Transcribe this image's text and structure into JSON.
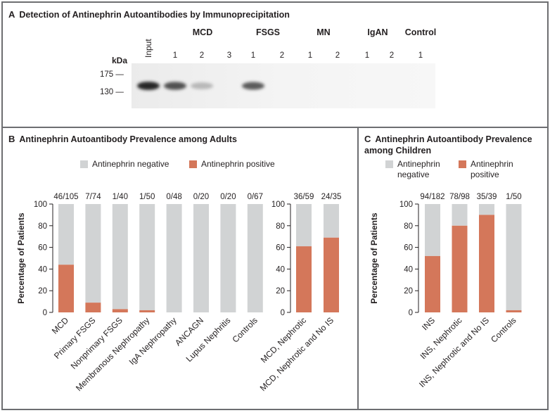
{
  "panel_a": {
    "letter": "A",
    "title": "Detection of Antinephrin Autoantibodies by Immunoprecipitation",
    "kda_label": "kDa",
    "markers": [
      "175 —",
      "130 —"
    ],
    "input_label": "Input",
    "groups": [
      {
        "name": "MCD",
        "lanes": [
          "1",
          "2",
          "3"
        ]
      },
      {
        "name": "FSGS",
        "lanes": [
          "1",
          "2"
        ]
      },
      {
        "name": "MN",
        "lanes": [
          "1",
          "2"
        ]
      },
      {
        "name": "IgAN",
        "lanes": [
          "1",
          "2"
        ]
      },
      {
        "name": "Control",
        "lanes": [
          "1"
        ]
      }
    ],
    "band_intensities": [
      0.95,
      0.75,
      0.25,
      0.0,
      0.7,
      0.0,
      0.0,
      0.0,
      0.0,
      0.0,
      0.0
    ]
  },
  "panel_b": {
    "letter": "B",
    "title": "Antinephrin Autoantibody Prevalence among Adults"
  },
  "panel_c": {
    "letter": "C",
    "title_line1": "Antinephrin Autoantibody Prevalence",
    "title_line2": "among Children"
  },
  "legend": {
    "negative": "Antinephrin negative",
    "positive": "Antinephrin positive",
    "negative_line1": "Antinephrin",
    "negative_line2": "negative",
    "positive_line1": "Antinephrin",
    "positive_line2": "positive"
  },
  "colors": {
    "positive": "#d4775a",
    "negative": "#d1d3d4",
    "border": "#6d6e71"
  },
  "chart_data": [
    {
      "type": "bar",
      "id": "adults-main",
      "ylabel": "Percentage of Patients",
      "ylim": [
        0,
        100
      ],
      "yticks": [
        0,
        20,
        40,
        60,
        80,
        100
      ],
      "categories": [
        "MCD",
        "Primary FSGS",
        "Nonprimary FSGS",
        "Membranous Nephropathy",
        "IgA Nephropathy",
        "ANCAGN",
        "Lupus Nephritis",
        "Controls"
      ],
      "counts": [
        "46/105",
        "7/74",
        "1/40",
        "1/50",
        "0/48",
        "0/20",
        "0/20",
        "0/67"
      ],
      "series": [
        {
          "name": "Antinephrin positive",
          "values": [
            44,
            9,
            3,
            2,
            0,
            0,
            0,
            0
          ]
        },
        {
          "name": "Antinephrin negative",
          "values": [
            56,
            91,
            97,
            98,
            100,
            100,
            100,
            100
          ]
        }
      ]
    },
    {
      "type": "bar",
      "id": "adults-nephrotic",
      "ylim": [
        0,
        100
      ],
      "yticks": [
        0,
        20,
        40,
        60,
        80,
        100
      ],
      "categories": [
        "MCD, Nephrotic",
        "MCD, Nephrotic and No IS"
      ],
      "counts": [
        "36/59",
        "24/35"
      ],
      "series": [
        {
          "name": "Antinephrin positive",
          "values": [
            61,
            69
          ]
        },
        {
          "name": "Antinephrin negative",
          "values": [
            39,
            31
          ]
        }
      ]
    },
    {
      "type": "bar",
      "id": "children",
      "ylabel": "Percentage of Patients",
      "ylim": [
        0,
        100
      ],
      "yticks": [
        0,
        20,
        40,
        60,
        80,
        100
      ],
      "categories": [
        "INS",
        "INS, Nephrotic",
        "INS, Nephrotic and No IS",
        "Controls"
      ],
      "counts": [
        "94/182",
        "78/98",
        "35/39",
        "1/50"
      ],
      "series": [
        {
          "name": "Antinephrin positive",
          "values": [
            52,
            80,
            90,
            2
          ]
        },
        {
          "name": "Antinephrin negative",
          "values": [
            48,
            20,
            10,
            98
          ]
        }
      ]
    }
  ]
}
